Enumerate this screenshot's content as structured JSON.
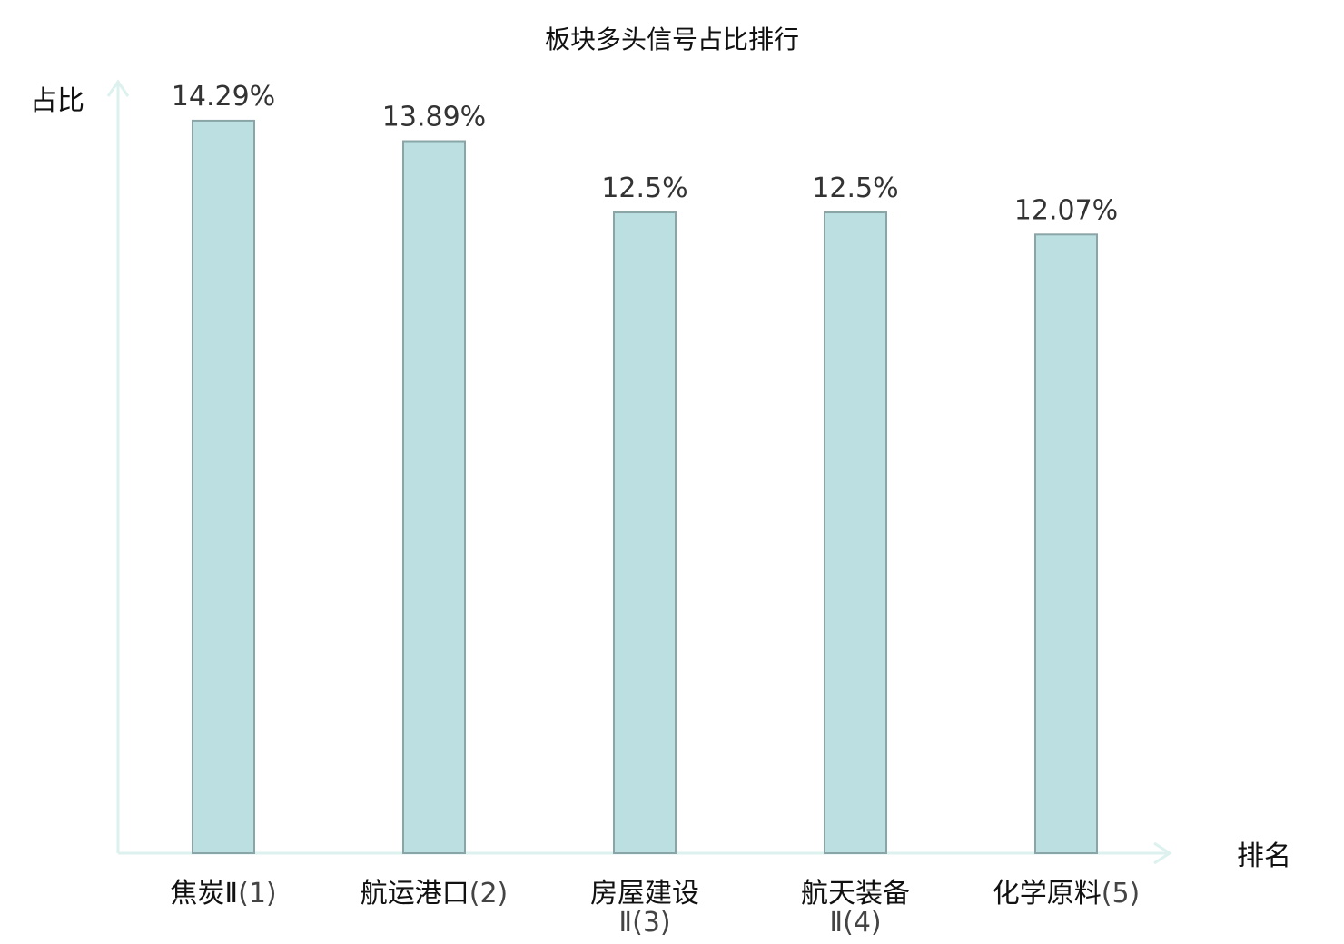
{
  "chart_data": {
    "type": "bar",
    "title": "板块多头信号占比排行",
    "xlabel": "排名",
    "ylabel": "占比",
    "ylim": [
      0,
      15.05
    ],
    "grid": false,
    "categories": [
      {
        "name": "焦炭Ⅱ",
        "rank": "(1)",
        "highlight": false
      },
      {
        "name": "航运港口",
        "rank": "(2)",
        "highlight": false
      },
      {
        "name": "房屋建设Ⅱ",
        "rank": "(3)",
        "highlight": false
      },
      {
        "name": "航天装备Ⅱ",
        "rank": "(4)",
        "highlight": false
      },
      {
        "name": "化学原料",
        "rank": "(5)",
        "highlight": true
      }
    ],
    "values": [
      14.29,
      13.89,
      12.5,
      12.5,
      12.07
    ],
    "value_labels": [
      "14.29%",
      "13.89%",
      "12.5%",
      "12.5%",
      "12.07%"
    ]
  },
  "colors": {
    "bar_fill": "#bcdfe1",
    "bar_stroke": "#8aa5a7",
    "axis": "#ddf1ee",
    "highlight": "#e0191f"
  }
}
